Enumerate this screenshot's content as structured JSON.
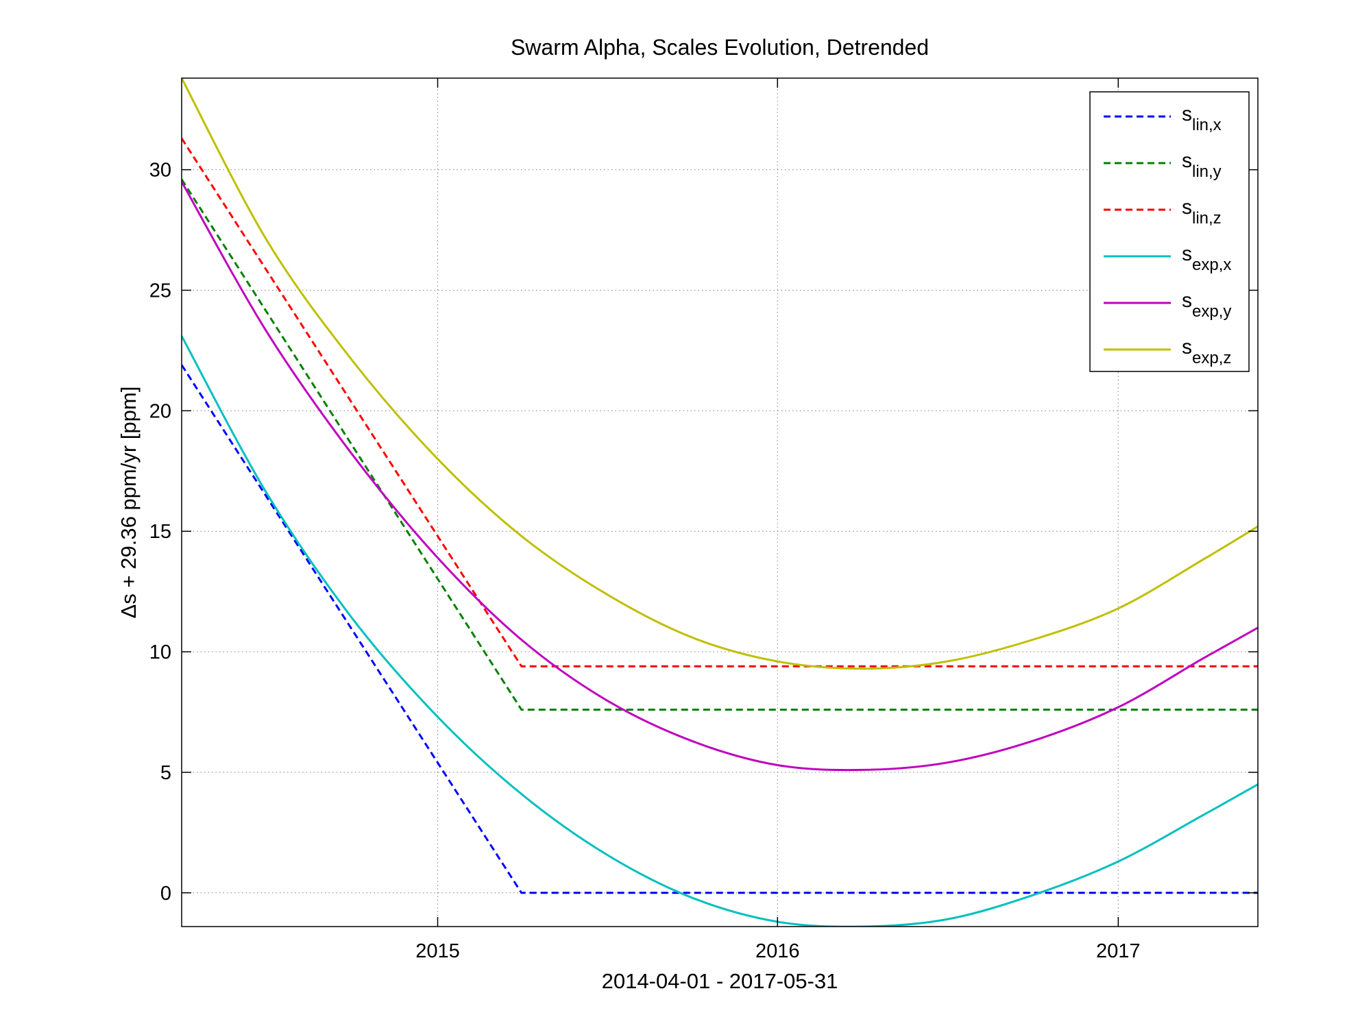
{
  "chart_data": {
    "type": "line",
    "title": "Swarm Alpha, Scales Evolution, Detrended",
    "xlabel": "2014-04-01 - 2017-05-31",
    "ylabel_prefix": "Δ",
    "ylabel": "s + 29.36 ppm/yr [ppm]",
    "xlim": [
      "2014-04-01",
      "2017-05-31"
    ],
    "ylim": [
      -1.4,
      33.8
    ],
    "x_ticks": [
      "2015-01-01",
      "2016-01-01",
      "2017-01-01"
    ],
    "x_tick_labels": [
      "2015",
      "2016",
      "2017"
    ],
    "y_ticks": [
      0,
      5,
      10,
      15,
      20,
      25,
      30
    ],
    "y_tick_labels": [
      "0",
      "5",
      "10",
      "15",
      "20",
      "25",
      "30"
    ],
    "grid": true,
    "legend_position": "top-right",
    "series": [
      {
        "name": "s_lin,x",
        "label_base": "s",
        "label_sub": "lin,x",
        "color": "#0000ff",
        "style": "dashed",
        "x": [
          "2014-04-01",
          "2015-04-01",
          "2017-05-31"
        ],
        "y": [
          21.9,
          0.0,
          0.0
        ]
      },
      {
        "name": "s_lin,y",
        "label_base": "s",
        "label_sub": "lin,y",
        "color": "#008000",
        "style": "dashed",
        "x": [
          "2014-04-01",
          "2015-04-01",
          "2017-05-31"
        ],
        "y": [
          29.6,
          7.6,
          7.6
        ]
      },
      {
        "name": "s_lin,z",
        "label_base": "s",
        "label_sub": "lin,z",
        "color": "#ff0000",
        "style": "dashed",
        "x": [
          "2014-04-01",
          "2015-04-01",
          "2017-05-31"
        ],
        "y": [
          31.3,
          9.4,
          9.4
        ]
      },
      {
        "name": "s_exp,x",
        "label_base": "s",
        "label_sub": "exp,x",
        "color": "#00bfbf",
        "style": "solid",
        "x": [
          "2014-04-01",
          "2014-07-01",
          "2014-10-01",
          "2015-01-01",
          "2015-04-01",
          "2015-07-01",
          "2015-10-01",
          "2016-01-01",
          "2016-04-01",
          "2016-07-01",
          "2016-10-01",
          "2017-01-01",
          "2017-04-01",
          "2017-05-31"
        ],
        "y": [
          23.1,
          16.6,
          11.4,
          7.3,
          4.1,
          1.6,
          -0.2,
          -1.2,
          -1.4,
          -1.1,
          -0.1,
          1.3,
          3.2,
          4.5
        ]
      },
      {
        "name": "s_exp,y",
        "label_base": "s",
        "label_sub": "exp,y",
        "color": "#bf00bf",
        "style": "solid",
        "x": [
          "2014-04-01",
          "2014-07-01",
          "2014-10-01",
          "2015-01-01",
          "2015-04-01",
          "2015-07-01",
          "2015-10-01",
          "2016-01-01",
          "2016-04-01",
          "2016-07-01",
          "2016-10-01",
          "2017-01-01",
          "2017-04-01",
          "2017-05-31"
        ],
        "y": [
          29.5,
          23.3,
          18.2,
          13.9,
          10.5,
          8.0,
          6.3,
          5.3,
          5.1,
          5.4,
          6.3,
          7.7,
          9.7,
          11.0
        ]
      },
      {
        "name": "s_exp,z",
        "label_base": "s",
        "label_sub": "exp,z",
        "color": "#bfbf00",
        "style": "solid",
        "x": [
          "2014-04-01",
          "2014-07-01",
          "2014-10-01",
          "2015-01-01",
          "2015-04-01",
          "2015-07-01",
          "2015-10-01",
          "2016-01-01",
          "2016-04-01",
          "2016-07-01",
          "2016-10-01",
          "2017-01-01",
          "2017-04-01",
          "2017-05-31"
        ],
        "y": [
          33.8,
          27.1,
          22.1,
          18.0,
          14.8,
          12.4,
          10.6,
          9.6,
          9.3,
          9.6,
          10.5,
          11.8,
          13.8,
          15.2
        ]
      }
    ]
  }
}
